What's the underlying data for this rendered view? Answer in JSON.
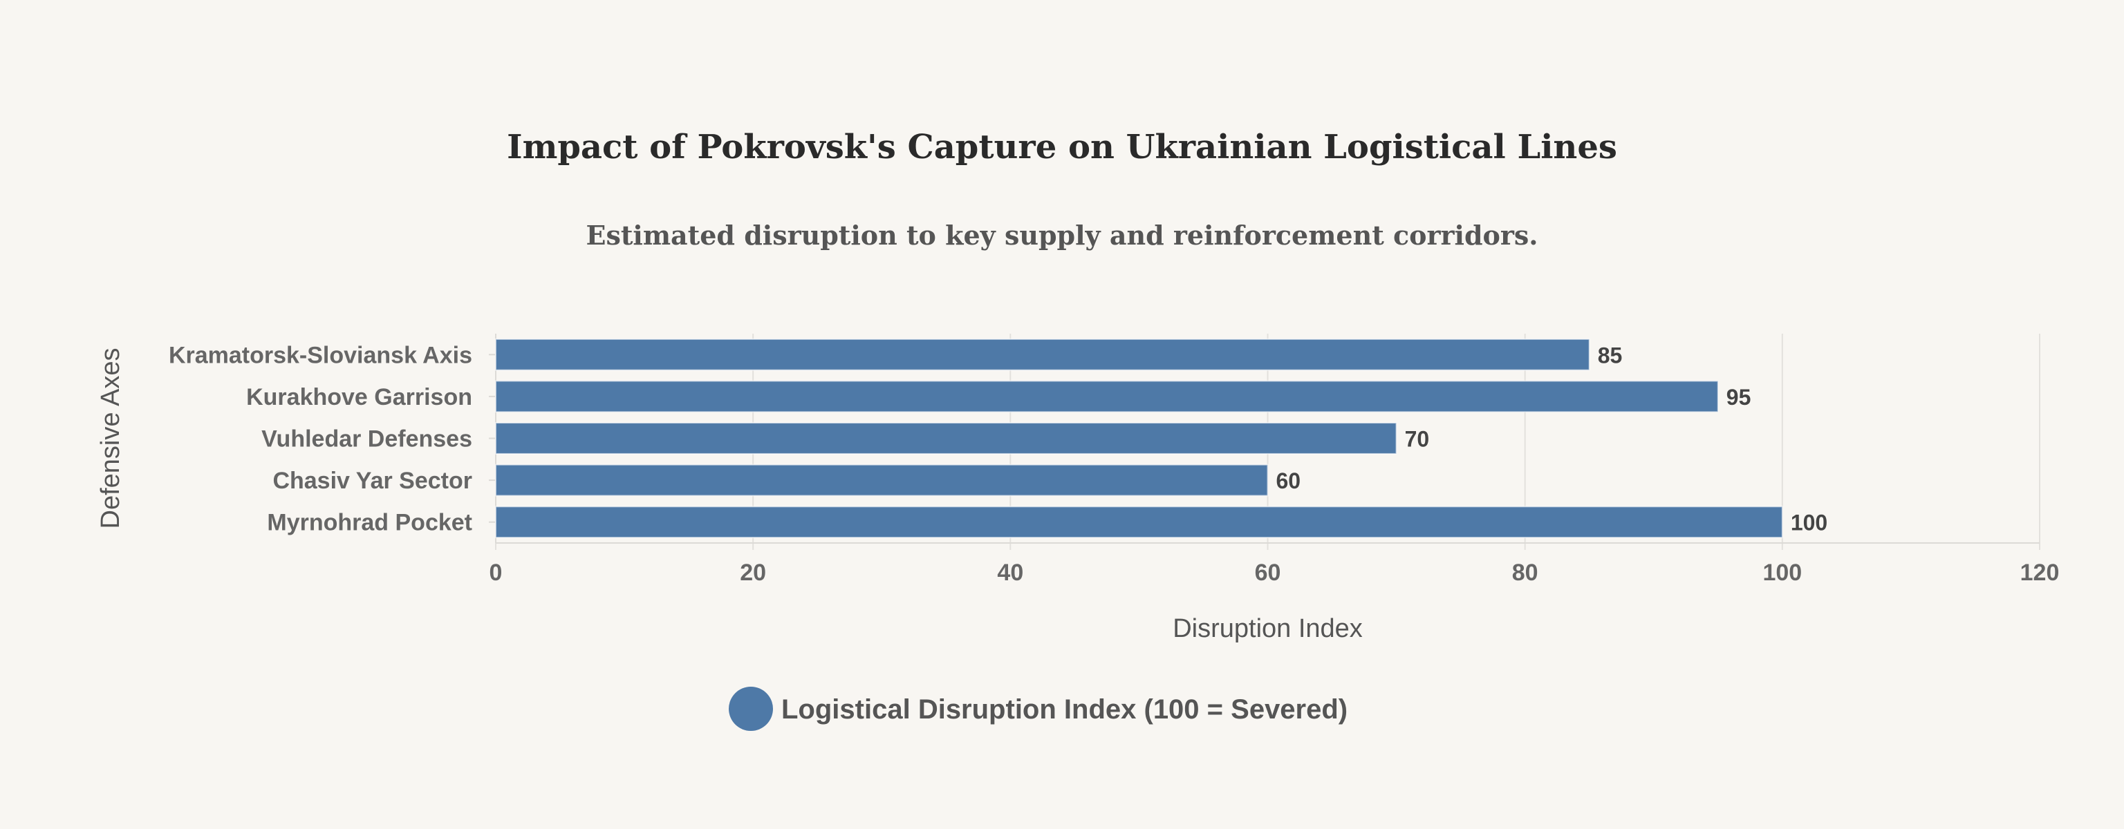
{
  "chart_data": {
    "type": "bar",
    "orientation": "horizontal",
    "title": "Impact of Pokrovsk's Capture on Ukrainian Logistical Lines",
    "subtitle": "Estimated disruption to key supply and reinforcement corridors.",
    "xlabel": "Disruption Index",
    "ylabel": "Defensive Axes",
    "categories": [
      "Kramatorsk-Sloviansk Axis",
      "Kurakhove Garrison",
      "Vuhledar Defenses",
      "Chasiv Yar Sector",
      "Myrnohrad Pocket"
    ],
    "series": [
      {
        "name": "Logistical Disruption Index (100 = Severed)",
        "values": [
          85,
          95,
          70,
          60,
          100
        ],
        "color": "#4e79a7"
      }
    ],
    "xlim": [
      0,
      120
    ],
    "xticks": [
      0,
      20,
      40,
      60,
      80,
      100,
      120
    ],
    "grid": true,
    "legend_position": "bottom"
  }
}
